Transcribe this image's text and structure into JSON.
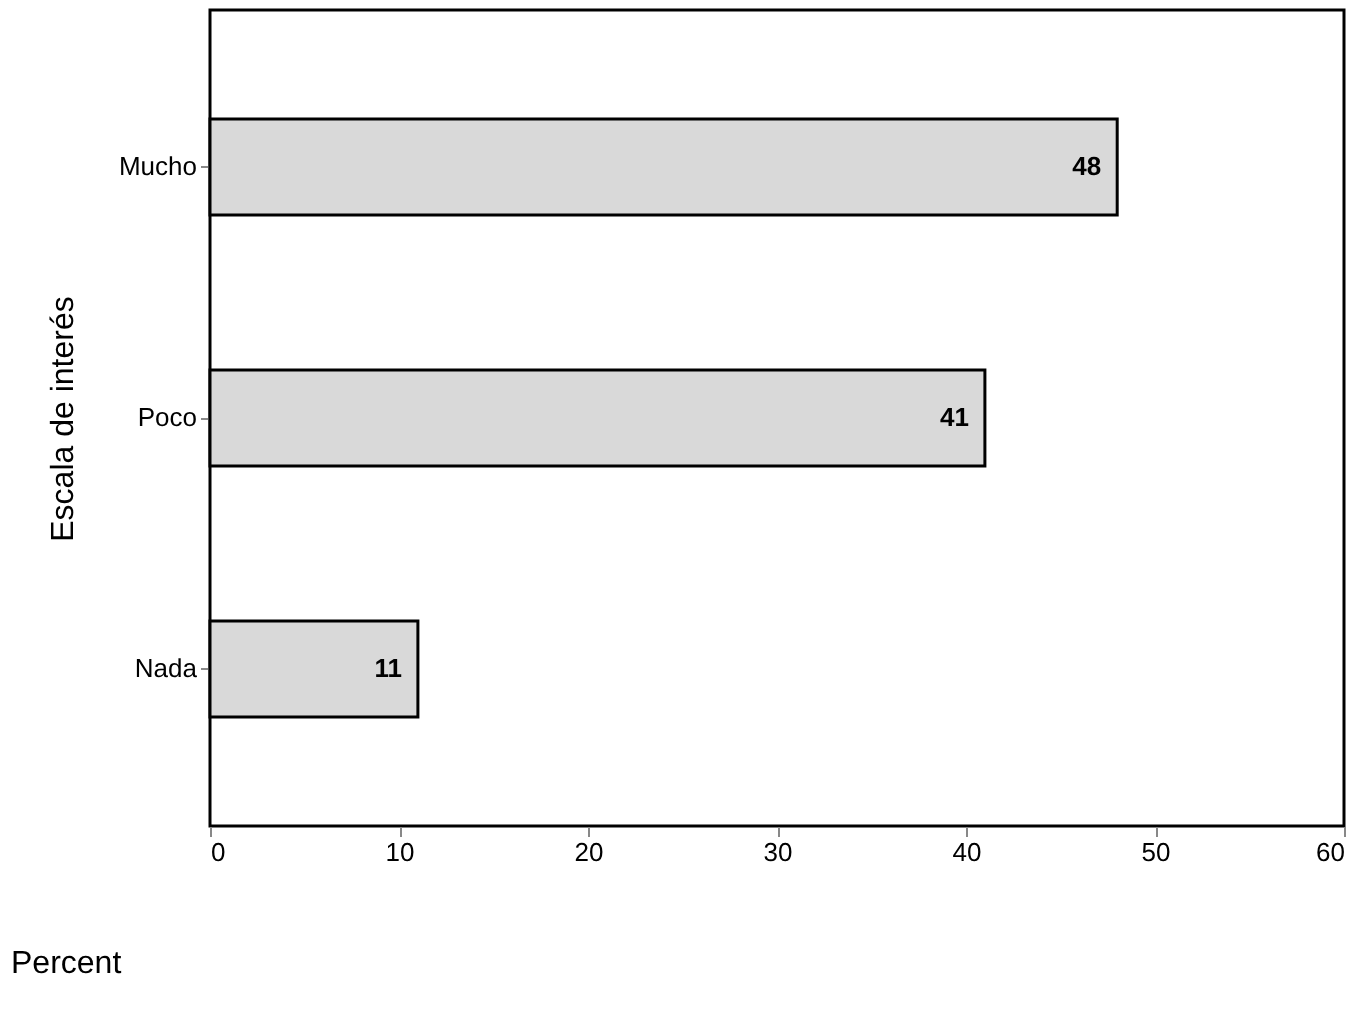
{
  "chart_data": {
    "type": "bar",
    "orientation": "horizontal",
    "categories": [
      "Mucho",
      "Poco",
      "Nada"
    ],
    "values": [
      48,
      41,
      11
    ],
    "color": "#d9d9d9",
    "xlim": [
      0,
      60
    ],
    "xticks": [
      0,
      10,
      20,
      30,
      40,
      50,
      60
    ],
    "xlabel": "Percent",
    "ylabel": "Escala de interés",
    "data_labels": true,
    "grid": false
  }
}
